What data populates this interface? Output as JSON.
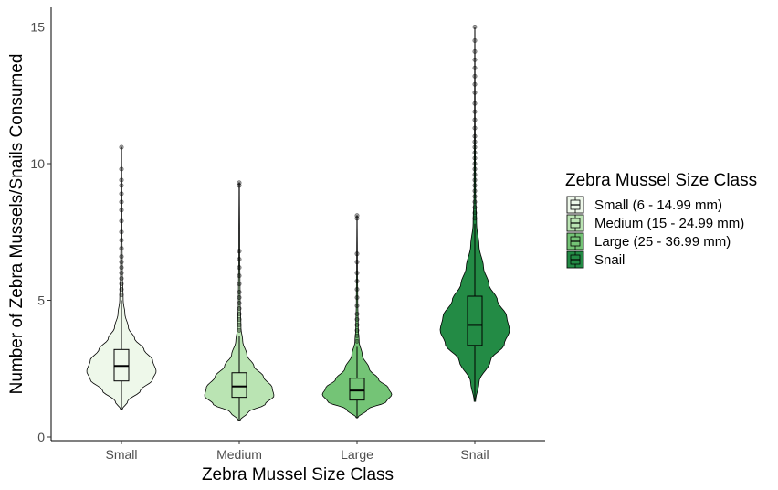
{
  "chart_data": {
    "type": "violin",
    "xlabel": "Zebra Mussel Size Class",
    "ylabel": "Number of Zebra Mussels/Snails Consumed",
    "ylim": [
      0,
      15.6
    ],
    "yticks": [
      0,
      5,
      10,
      15
    ],
    "grid": false,
    "legend": {
      "title": "Zebra Mussel Size Class",
      "placement": "right",
      "entries": [
        {
          "label": "Small (6 - 14.99 mm)",
          "color": "#eef8ea"
        },
        {
          "label": "Medium (15 - 24.99 mm)",
          "color": "#bae4b3"
        },
        {
          "label": "Large (25 - 36.99 mm)",
          "color": "#74c476"
        },
        {
          "label": "Snail",
          "color": "#238b45"
        }
      ]
    },
    "categories": [
      "Small",
      "Medium",
      "Large",
      "Snail"
    ],
    "series": [
      {
        "category": "Small",
        "color": "#eef8ea",
        "box": {
          "whisker_low": 1.0,
          "q1": 2.05,
          "median": 2.6,
          "q3": 3.2,
          "whisker_high": 5.0
        },
        "violin_profile": [
          [
            1.0,
            0.02
          ],
          [
            1.3,
            0.18
          ],
          [
            1.7,
            0.55
          ],
          [
            2.1,
            0.9
          ],
          [
            2.4,
            1.0
          ],
          [
            2.8,
            0.9
          ],
          [
            3.2,
            0.65
          ],
          [
            3.6,
            0.38
          ],
          [
            4.0,
            0.2
          ],
          [
            4.5,
            0.1
          ],
          [
            5.0,
            0.05
          ],
          [
            6.0,
            0.025
          ],
          [
            8.0,
            0.012
          ],
          [
            10.6,
            0.005
          ]
        ],
        "outliers": [
          5.2,
          5.4,
          5.6,
          5.8,
          6.0,
          6.2,
          6.4,
          6.6,
          6.9,
          7.2,
          7.5,
          7.9,
          8.3,
          8.6,
          8.9,
          9.2,
          9.4,
          9.8,
          10.6
        ]
      },
      {
        "category": "Medium",
        "color": "#bae4b3",
        "box": {
          "whisker_low": 0.6,
          "q1": 1.45,
          "median": 1.85,
          "q3": 2.35,
          "whisker_high": 3.7
        },
        "violin_profile": [
          [
            0.6,
            0.02
          ],
          [
            0.9,
            0.25
          ],
          [
            1.2,
            0.75
          ],
          [
            1.5,
            1.0
          ],
          [
            1.8,
            0.95
          ],
          [
            2.2,
            0.7
          ],
          [
            2.6,
            0.42
          ],
          [
            3.0,
            0.22
          ],
          [
            3.5,
            0.1
          ],
          [
            4.0,
            0.05
          ],
          [
            5.0,
            0.025
          ],
          [
            7.0,
            0.012
          ],
          [
            9.3,
            0.005
          ]
        ],
        "outliers": [
          3.9,
          4.1,
          4.3,
          4.5,
          4.7,
          4.9,
          5.1,
          5.3,
          5.6,
          5.9,
          6.2,
          6.5,
          6.8,
          9.2,
          9.3
        ]
      },
      {
        "category": "Large",
        "color": "#74c476",
        "box": {
          "whisker_low": 0.7,
          "q1": 1.35,
          "median": 1.7,
          "q3": 2.15,
          "whisker_high": 3.3
        },
        "violin_profile": [
          [
            0.7,
            0.02
          ],
          [
            1.0,
            0.3
          ],
          [
            1.3,
            0.85
          ],
          [
            1.55,
            1.0
          ],
          [
            1.8,
            0.9
          ],
          [
            2.1,
            0.62
          ],
          [
            2.5,
            0.35
          ],
          [
            3.0,
            0.15
          ],
          [
            3.5,
            0.06
          ],
          [
            4.0,
            0.035
          ],
          [
            5.0,
            0.02
          ],
          [
            6.5,
            0.01
          ],
          [
            8.1,
            0.004
          ]
        ],
        "outliers": [
          3.5,
          3.7,
          3.9,
          4.1,
          4.3,
          4.5,
          4.8,
          5.1,
          5.4,
          5.7,
          6.0,
          6.4,
          6.7,
          8.0,
          8.1
        ]
      },
      {
        "category": "Snail",
        "color": "#238b45",
        "box": {
          "whisker_low": 1.35,
          "q1": 3.35,
          "median": 4.1,
          "q3": 5.15,
          "whisker_high": 7.8
        },
        "violin_profile": [
          [
            1.3,
            0.02
          ],
          [
            2.0,
            0.12
          ],
          [
            2.8,
            0.45
          ],
          [
            3.4,
            0.85
          ],
          [
            3.9,
            1.0
          ],
          [
            4.4,
            0.92
          ],
          [
            5.0,
            0.65
          ],
          [
            5.6,
            0.4
          ],
          [
            6.2,
            0.25
          ],
          [
            7.0,
            0.12
          ],
          [
            7.8,
            0.05
          ],
          [
            9.0,
            0.02
          ],
          [
            12.0,
            0.008
          ],
          [
            15.0,
            0.003
          ]
        ],
        "outliers": [
          8.0,
          8.2,
          8.4,
          8.6,
          8.8,
          9.0,
          9.2,
          9.4,
          9.6,
          9.8,
          10.0,
          10.2,
          10.4,
          10.6,
          10.8,
          11.0,
          11.3,
          11.6,
          11.9,
          12.2,
          12.6,
          12.9,
          13.2,
          13.5,
          13.8,
          14.1,
          14.5,
          15.0
        ]
      }
    ]
  }
}
